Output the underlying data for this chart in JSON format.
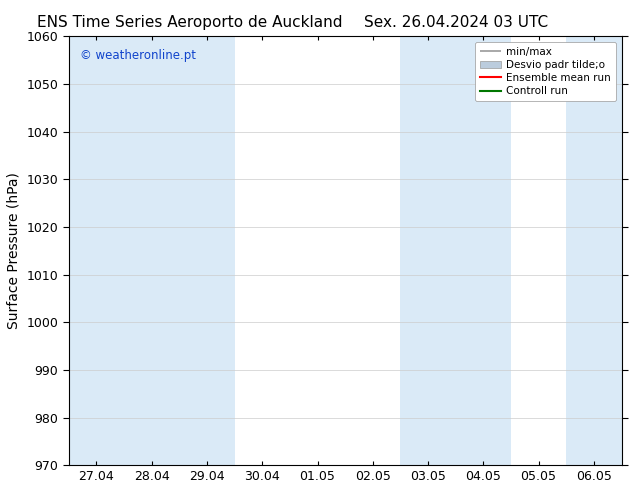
{
  "title_left": "ENS Time Series Aeroporto de Auckland",
  "title_right": "Sex. 26.04.2024 03 UTC",
  "ylabel": "Surface Pressure (hPa)",
  "ylim": [
    970,
    1060
  ],
  "yticks": [
    970,
    980,
    990,
    1000,
    1010,
    1020,
    1030,
    1040,
    1050,
    1060
  ],
  "xtick_labels": [
    "27.04",
    "28.04",
    "29.04",
    "30.04",
    "01.05",
    "02.05",
    "03.05",
    "04.05",
    "05.05",
    "06.05"
  ],
  "watermark": "© weatheronline.pt",
  "watermark_color": "#1144cc",
  "legend_entries": [
    "min/max",
    "Desvio padr tilde;o",
    "Ensemble mean run",
    "Controll run"
  ],
  "legend_line_colors": [
    "#999999",
    "#bbccdd",
    "#ff0000",
    "#007700"
  ],
  "shade_color": "#daeaf7",
  "background_color": "#ffffff",
  "title_fontsize": 11,
  "axis_fontsize": 10,
  "tick_fontsize": 9,
  "figsize": [
    6.34,
    4.9
  ],
  "dpi": 100,
  "shaded_columns": [
    0,
    1,
    2,
    6,
    7,
    9
  ]
}
